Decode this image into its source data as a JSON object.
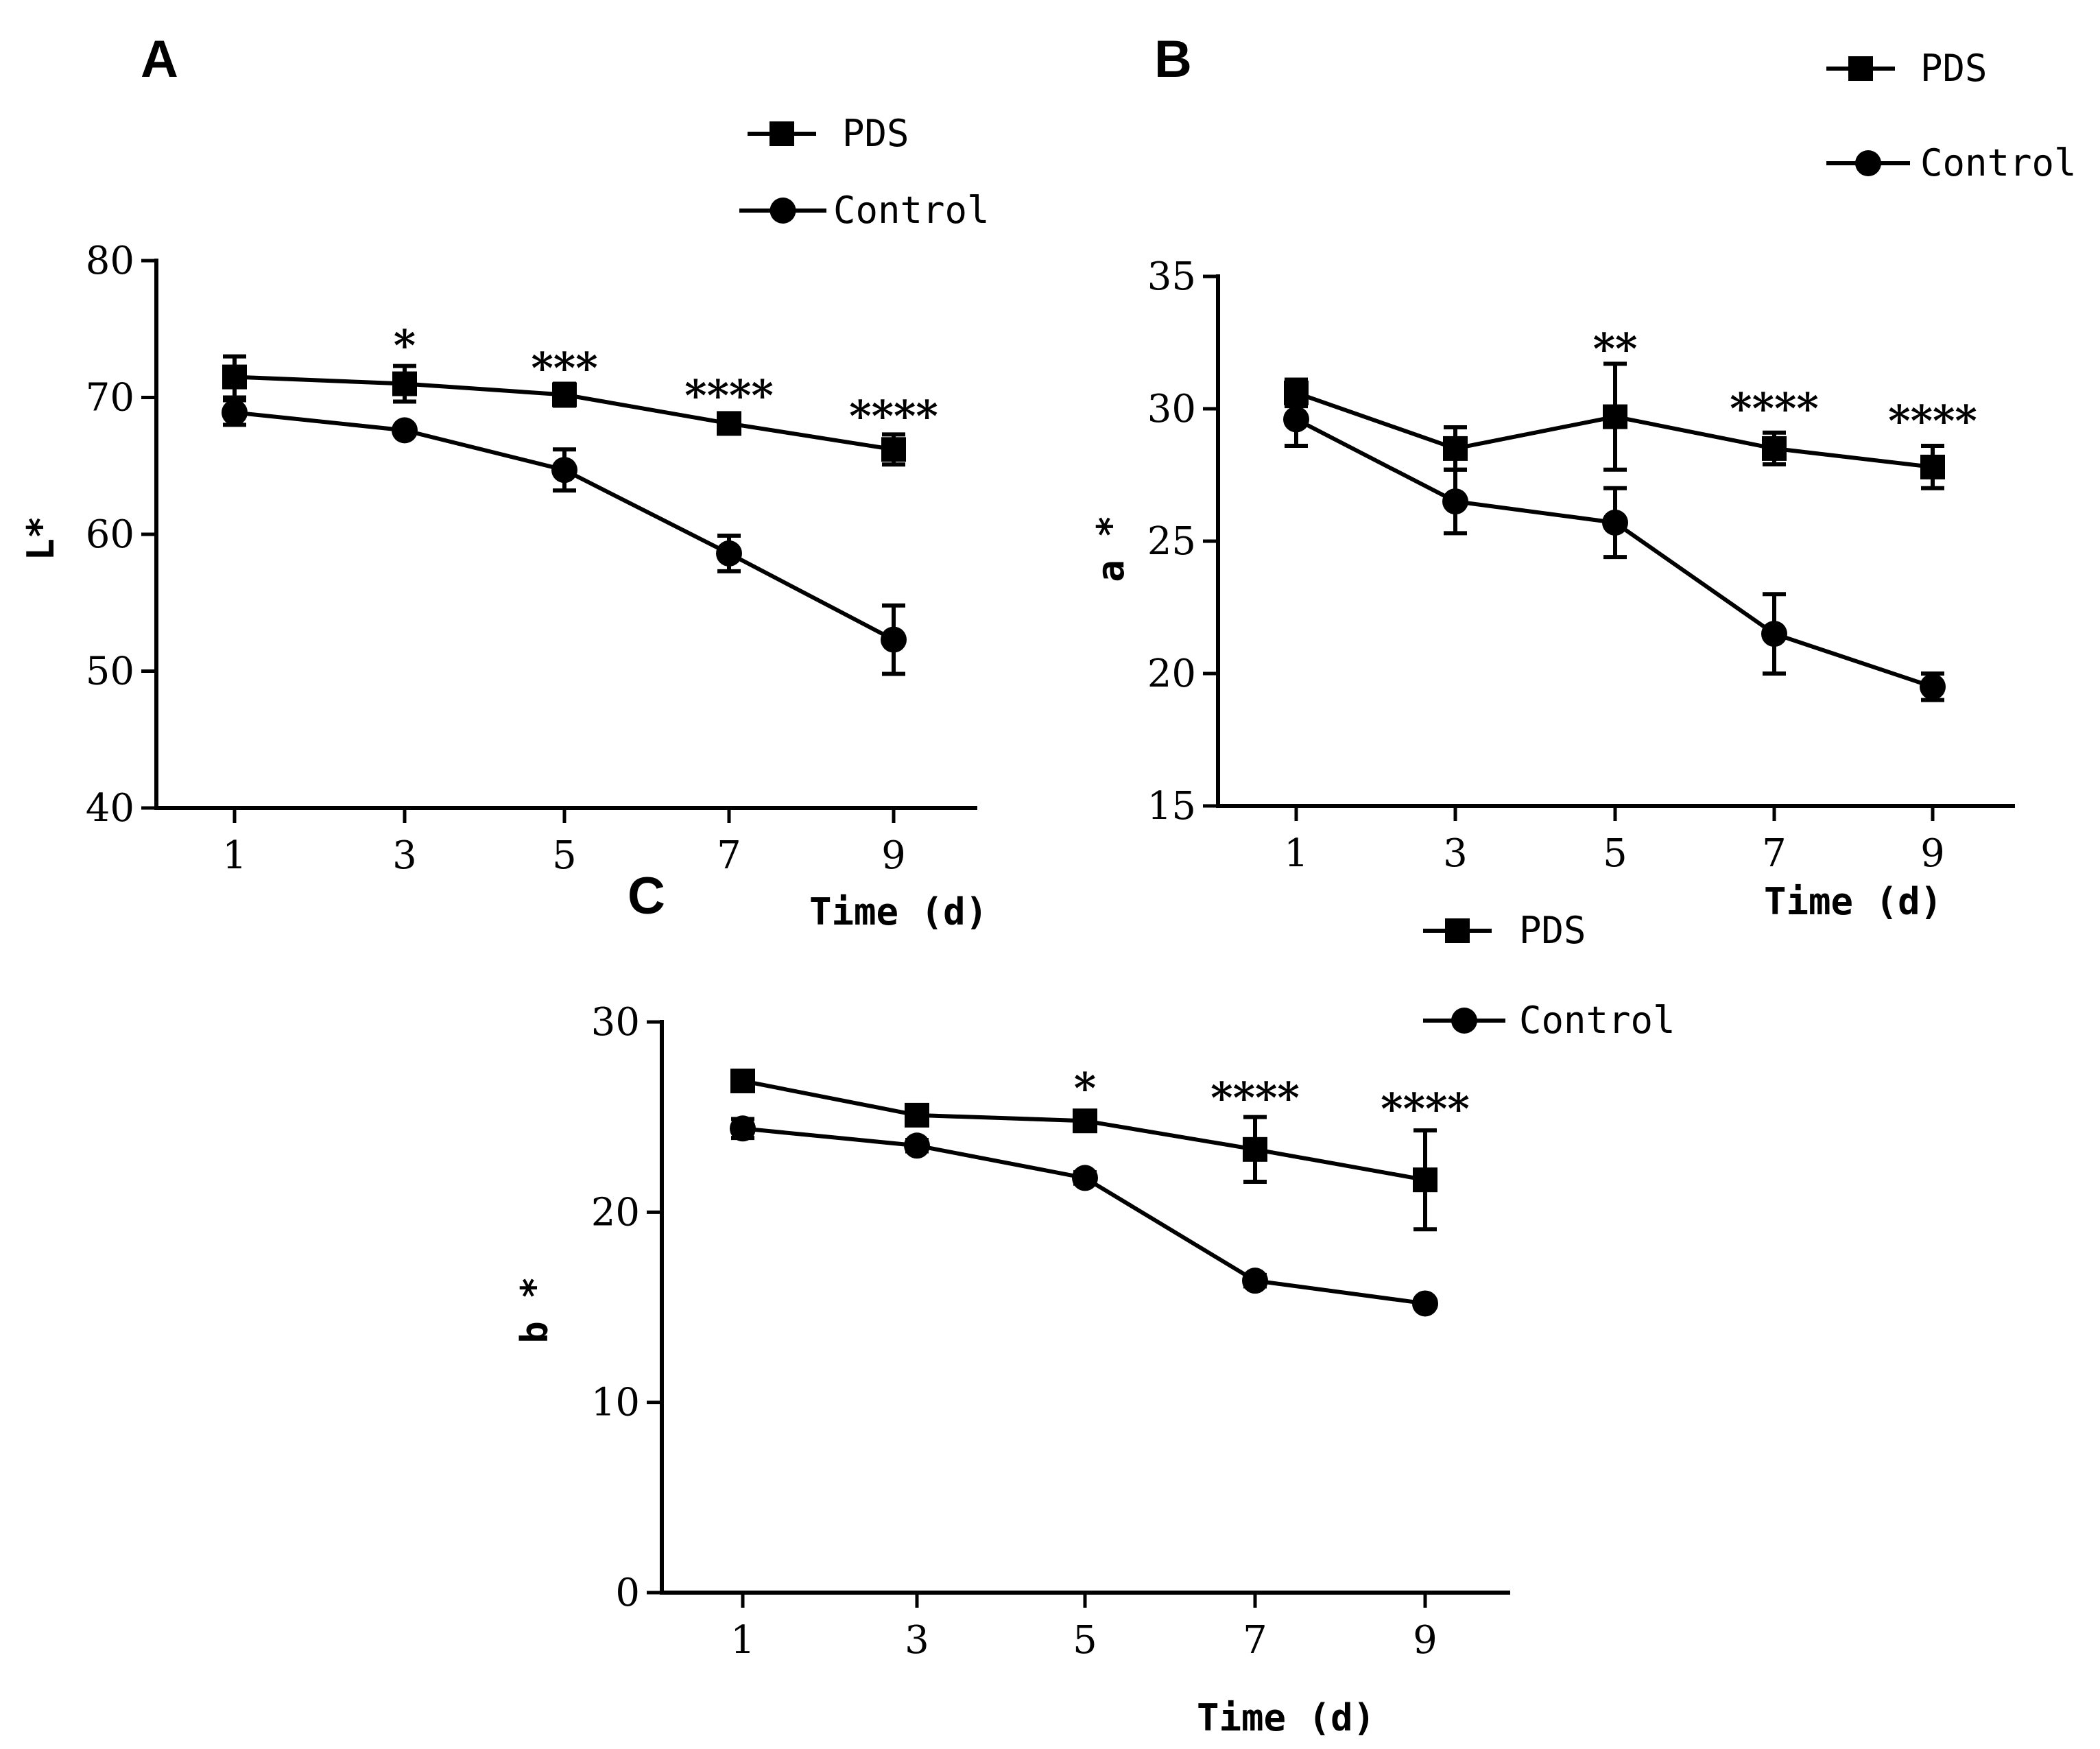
{
  "chart_data": [
    {
      "type": "line",
      "panel": "A",
      "ylabel": "L*",
      "xlabel": "Time (d)",
      "ylim": [
        40,
        80
      ],
      "yticks": [
        40,
        50,
        60,
        70,
        80
      ],
      "x": [
        1,
        3,
        5,
        7,
        9
      ],
      "legend": [
        "PDS",
        "Control"
      ],
      "series": [
        {
          "name": "PDS",
          "marker": "square",
          "values": [
            71.5,
            71.0,
            70.2,
            68.1,
            66.2
          ],
          "errors": [
            1.5,
            1.3,
            0.8,
            0.6,
            1.1
          ]
        },
        {
          "name": "Control",
          "marker": "circle",
          "values": [
            68.9,
            67.6,
            64.7,
            58.6,
            52.3
          ],
          "errors": [
            0.9,
            0.3,
            1.5,
            1.3,
            2.5
          ]
        }
      ],
      "significance": [
        "",
        "*",
        "***",
        "****",
        "****"
      ]
    },
    {
      "type": "line",
      "panel": "B",
      "ylabel": "a *",
      "xlabel": "Time (d)",
      "ylim": [
        15,
        35
      ],
      "yticks": [
        15,
        20,
        25,
        30,
        35
      ],
      "x": [
        1,
        3,
        5,
        7,
        9
      ],
      "legend": [
        "PDS",
        "Control"
      ],
      "series": [
        {
          "name": "PDS",
          "marker": "square",
          "values": [
            30.6,
            28.5,
            29.7,
            28.5,
            27.8
          ],
          "errors": [
            0.5,
            0.8,
            2.0,
            0.6,
            0.8
          ]
        },
        {
          "name": "Control",
          "marker": "circle",
          "values": [
            29.6,
            26.5,
            25.7,
            21.5,
            19.5
          ],
          "errors": [
            1.0,
            1.2,
            1.3,
            1.5,
            0.5
          ]
        }
      ],
      "significance": [
        "",
        "",
        "**",
        "****",
        "****"
      ]
    },
    {
      "type": "line",
      "panel": "C",
      "ylabel": "b *",
      "xlabel": "Time (d)",
      "ylim": [
        0,
        30
      ],
      "yticks": [
        0,
        10,
        20,
        30
      ],
      "x": [
        1,
        3,
        5,
        7,
        9
      ],
      "legend": [
        "PDS",
        "Control"
      ],
      "series": [
        {
          "name": "PDS",
          "marker": "square",
          "values": [
            26.9,
            25.1,
            24.8,
            23.3,
            21.7
          ],
          "errors": [
            0.3,
            0.3,
            0.5,
            1.7,
            2.6
          ]
        },
        {
          "name": "Control",
          "marker": "circle",
          "values": [
            24.4,
            23.5,
            21.8,
            16.4,
            15.2
          ],
          "errors": [
            0.5,
            0.3,
            0.3,
            0.3,
            0.2
          ]
        }
      ],
      "significance": [
        "",
        "",
        "*",
        "****",
        "****"
      ]
    }
  ]
}
